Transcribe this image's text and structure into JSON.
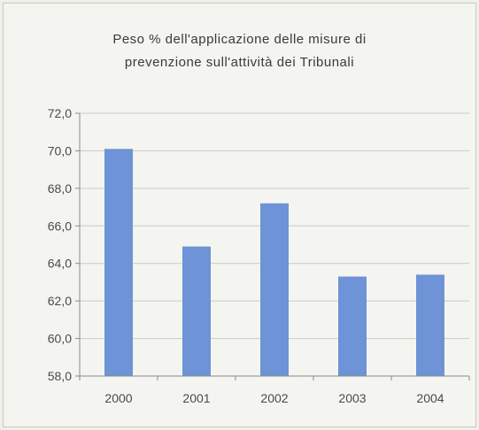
{
  "chart_data": {
    "type": "bar",
    "title": "Peso % dell'applicazione delle misure di prevenzione sull'attività dei Tribunali",
    "title_lines": [
      "Peso % dell'applicazione delle misure di",
      "prevenzione sull'attività dei Tribunali"
    ],
    "categories": [
      "2000",
      "2001",
      "2002",
      "2003",
      "2004"
    ],
    "values": [
      70.1,
      64.9,
      67.2,
      63.3,
      63.4
    ],
    "ylim": [
      58.0,
      72.0
    ],
    "yticks": [
      58.0,
      60.0,
      62.0,
      64.0,
      66.0,
      68.0,
      70.0,
      72.0
    ],
    "ytick_labels": [
      "58,0",
      "60,0",
      "62,0",
      "64,0",
      "66,0",
      "68,0",
      "70,0",
      "72,0"
    ],
    "xlabel": "",
    "ylabel": "",
    "grid": true,
    "bar_color": "#6e93d6",
    "grid_color": "#c9ccc4",
    "axis_color": "#8a8a8a"
  }
}
